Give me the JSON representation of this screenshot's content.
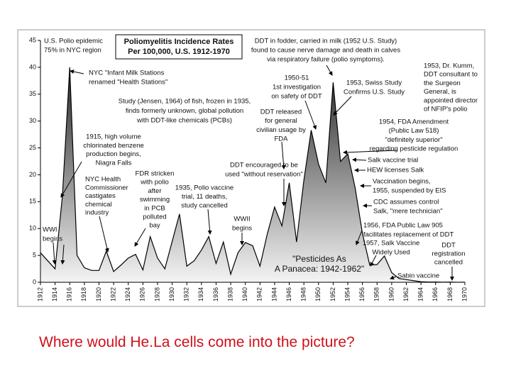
{
  "chart_data": {
    "type": "area",
    "title": [
      "Poliomyelitis Incidence Rates",
      "Per 100,000, U.S. 1912-1970"
    ],
    "x": [
      1912,
      1913,
      1914,
      1915,
      1916,
      1917,
      1918,
      1919,
      1920,
      1921,
      1922,
      1923,
      1924,
      1925,
      1926,
      1927,
      1928,
      1929,
      1930,
      1931,
      1932,
      1933,
      1934,
      1935,
      1936,
      1937,
      1938,
      1939,
      1940,
      1941,
      1942,
      1943,
      1944,
      1945,
      1946,
      1947,
      1948,
      1949,
      1950,
      1951,
      1952,
      1953,
      1954,
      1955,
      1956,
      1957,
      1958,
      1959,
      1960,
      1961,
      1962,
      1963,
      1964,
      1965,
      1966,
      1967,
      1968,
      1969,
      1970
    ],
    "values": [
      5.5,
      4,
      2.5,
      16,
      40,
      5,
      2.7,
      2.2,
      2.2,
      5.8,
      2,
      3.2,
      4.5,
      5.2,
      2.3,
      8.5,
      4.5,
      2.5,
      7.6,
      12.7,
      3,
      4,
      6,
      8.5,
      3.5,
      7.5,
      1.5,
      5.5,
      7.4,
      6.8,
      3,
      9,
      14,
      10.5,
      18.5,
      7.5,
      19,
      28.3,
      22,
      18.5,
      37.2,
      22.5,
      23.9,
      17.6,
      9.1,
      3.2,
      3.3,
      4.9,
      1.8,
      0.7,
      0.5,
      0.3,
      0.1,
      0.05,
      0.05,
      0.02,
      0.03,
      0.01,
      0.02
    ],
    "xlim": [
      1912,
      1970
    ],
    "ylim": [
      0,
      45
    ],
    "xticks": [
      1912,
      1914,
      1916,
      1918,
      1920,
      1922,
      1924,
      1926,
      1928,
      1930,
      1932,
      1934,
      1936,
      1938,
      1940,
      1942,
      1944,
      1946,
      1948,
      1950,
      1952,
      1954,
      1956,
      1958,
      1960,
      1962,
      1964,
      1966,
      1968,
      1970
    ],
    "yticks": [
      0,
      5,
      10,
      15,
      20,
      25,
      30,
      35,
      40,
      45
    ],
    "color": "#000000",
    "fill": [
      "#3c3c3c",
      "#f4f4f4"
    ],
    "annotations": [
      {
        "lines": [
          "U.S. Polio epidemic",
          "75% in NYC region"
        ]
      },
      {
        "lines": [
          "DDT in fodder, carried in milk (1952 U.S. Study)",
          "found to cause nerve damage and death in calves",
          "via respiratory failure (polio symptoms)."
        ]
      },
      {
        "lines": [
          "1953, Dr. Kumm,",
          "DDT consultant to",
          "the Surgeon",
          "General, is",
          "appointed director",
          "of NFIP's polio"
        ]
      },
      {
        "lines": [
          "NYC \"Infant Milk Stations",
          "renamed \"Health Stations\""
        ]
      },
      {
        "lines": [
          "1950-51",
          "1st investigation",
          "on safety of DDT"
        ]
      },
      {
        "lines": [
          "1953, Swiss Study",
          "Confirms U.S. Study"
        ]
      },
      {
        "lines": [
          "Study (Jensen, 1964) of fish, frozen in 1935,",
          "finds formerly unknown, global pollution",
          "with DDT-like chemicals (PCBs)"
        ]
      },
      {
        "lines": [
          "DDT released",
          "for general",
          "civilian usage by",
          "FDA"
        ]
      },
      {
        "lines": [
          "1954, FDA Amendment",
          "(Public Law 518)",
          "\"definitely superior\"",
          "regarding pesticide regulation"
        ]
      },
      {
        "lines": [
          "1915, high volume",
          "chlorinated benzene",
          "production begins,",
          "Niagra Falls"
        ]
      },
      {
        "lines": [
          "Salk vaccine trial"
        ]
      },
      {
        "lines": [
          "DDT encouraged to be",
          "used \"without reservation\""
        ]
      },
      {
        "lines": [
          "HEW licenses Salk"
        ]
      },
      {
        "lines": [
          "FDR stricken",
          "with polio",
          "after",
          "swimming",
          "in PCB",
          "polluted",
          "bay"
        ]
      },
      {
        "lines": [
          "NYC Health",
          "Commissioner",
          "castigates",
          "chemical",
          "industry"
        ]
      },
      {
        "lines": [
          "1935, Polio vaccine",
          "trial, 11 deaths,",
          "study cancelled"
        ]
      },
      {
        "lines": [
          "Vaccination begins,",
          "1955, suspended by EIS"
        ]
      },
      {
        "lines": [
          "CDC assumes control",
          "Salk, \"mere technician\""
        ]
      },
      {
        "lines": [
          "WWII",
          "begins"
        ]
      },
      {
        "lines": [
          "WWI",
          "begins"
        ]
      },
      {
        "lines": [
          "1956, FDA Public Law 905",
          "facilitates replacement of DDT"
        ]
      },
      {
        "lines": [
          "1957, Salk Vaccine",
          "Widely Used"
        ]
      },
      {
        "lines": [
          "DDT",
          "registration",
          "cancelled"
        ]
      },
      {
        "lines": [
          "\"Pesticides As",
          "A Panacea: 1942-1962\""
        ]
      },
      {
        "lines": [
          "Sabin vaccine"
        ]
      }
    ]
  },
  "caption": "Where would He.La cells come into the picture?"
}
